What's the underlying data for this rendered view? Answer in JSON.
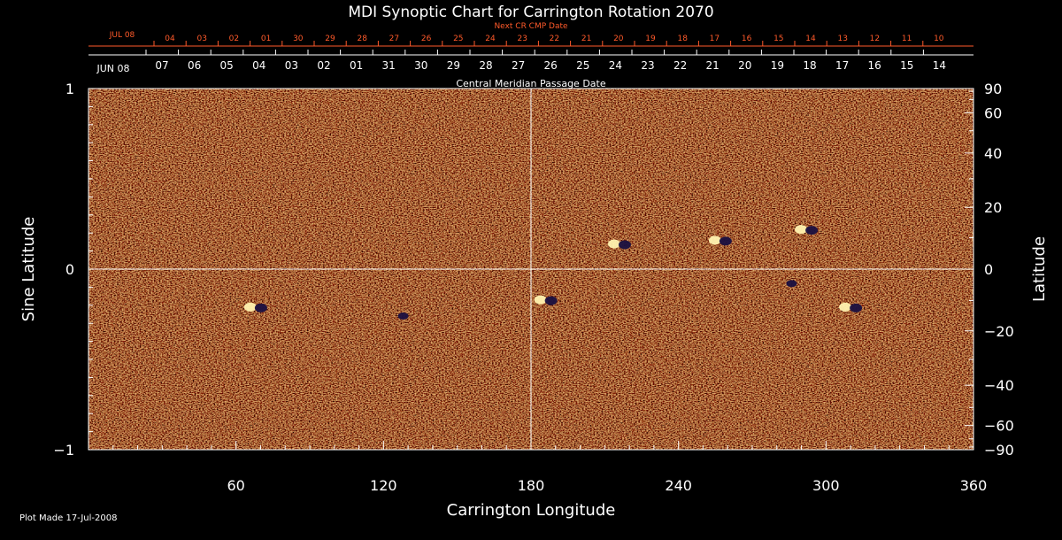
{
  "chart_data": {
    "type": "heatmap",
    "title": "MDI Synoptic Chart for Carrington Rotation 2070",
    "xlabel": "Carrington Longitude",
    "ylabel_left": "Sine Latitude",
    "ylabel_right": "Latitude",
    "xlim": [
      0,
      360
    ],
    "ylim": [
      -1,
      1
    ],
    "x_ticks": [
      60,
      120,
      180,
      240,
      300,
      360
    ],
    "y_left_ticks": [
      {
        "v": 1,
        "label": "1"
      },
      {
        "v": 0,
        "label": "0"
      },
      {
        "v": -1,
        "label": "−1"
      }
    ],
    "y_right_ticks": [
      90,
      60,
      40,
      20,
      0,
      -20,
      -40,
      -60,
      -90
    ],
    "top_axis_label": "Central Meridian Passage Date",
    "next_axis_label": "Next CR CMP Date",
    "start_month_label": "JUN 08",
    "next_month_label": "JUL 08",
    "cmp_dates": [
      "07",
      "06",
      "05",
      "04",
      "03",
      "02",
      "01",
      "31",
      "30",
      "29",
      "28",
      "27",
      "26",
      "25",
      "24",
      "23",
      "22",
      "21",
      "20",
      "19",
      "18",
      "17",
      "16",
      "15",
      "14"
    ],
    "next_cmp_dates": [
      "04",
      "03",
      "02",
      "01",
      "30",
      "29",
      "28",
      "27",
      "26",
      "25",
      "24",
      "23",
      "22",
      "21",
      "20",
      "19",
      "18",
      "17",
      "16",
      "15",
      "14",
      "13",
      "12",
      "11",
      "10"
    ],
    "active_regions": [
      {
        "lon": 68,
        "sinlat": -0.21,
        "pol": "bipolar"
      },
      {
        "lon": 128,
        "sinlat": -0.26,
        "pol": "neg"
      },
      {
        "lon": 186,
        "sinlat": -0.17,
        "pol": "bipolar"
      },
      {
        "lon": 216,
        "sinlat": 0.14,
        "pol": "bipolar"
      },
      {
        "lon": 257,
        "sinlat": 0.16,
        "pol": "bipolar"
      },
      {
        "lon": 286,
        "sinlat": -0.08,
        "pol": "neg"
      },
      {
        "lon": 292,
        "sinlat": 0.22,
        "pol": "bipolar"
      },
      {
        "lon": 310,
        "sinlat": -0.21,
        "pol": "bipolar"
      }
    ],
    "colors": {
      "background": "#000000",
      "field_base": "#e8521a",
      "positive": "#fff2b0",
      "negative": "#1a1040",
      "text": "#ffffff",
      "next_axis": "#ff5a2a"
    }
  },
  "footer": {
    "plot_made": "Plot Made 17-Jul-2008"
  }
}
